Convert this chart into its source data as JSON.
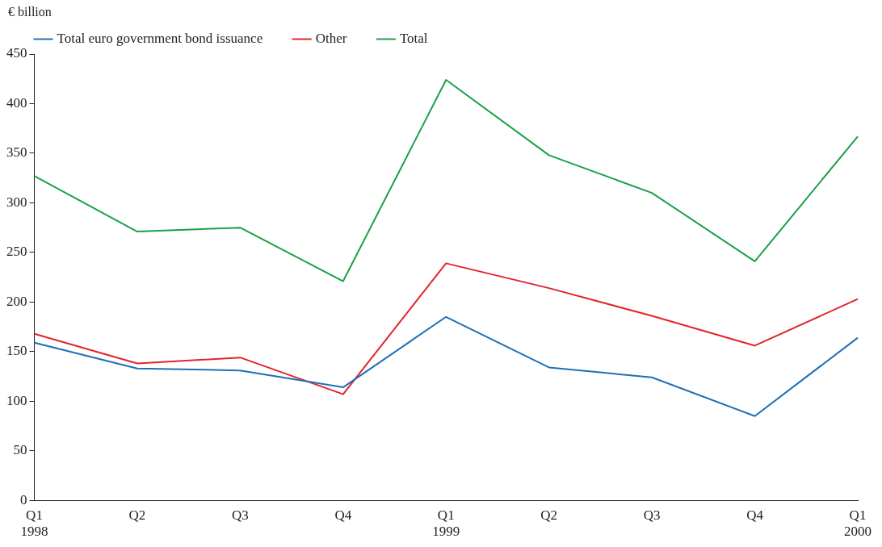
{
  "chart_data": {
    "type": "line",
    "ylabel": "€ billion",
    "categories": [
      "Q1 1998",
      "Q2",
      "Q3",
      "Q4",
      "Q1 1999",
      "Q2",
      "Q3",
      "Q4",
      "Q1 2000"
    ],
    "series": [
      {
        "name": "Total euro government bond issuance",
        "color": "#1f6fb5",
        "values": [
          159,
          133,
          131,
          114,
          185,
          134,
          124,
          85,
          164
        ]
      },
      {
        "name": "Other",
        "color": "#e3232c",
        "values": [
          168,
          138,
          144,
          107,
          239,
          214,
          186,
          156,
          203
        ]
      },
      {
        "name": "Total",
        "color": "#1aa04a",
        "values": [
          327,
          271,
          275,
          221,
          424,
          348,
          310,
          241,
          367
        ]
      }
    ],
    "ylim": [
      0,
      450
    ],
    "yticks": [
      0,
      50,
      100,
      150,
      200,
      250,
      300,
      350,
      400,
      450
    ],
    "grid": false,
    "legend": "top left",
    "marker": "none",
    "line_style": "solid"
  }
}
